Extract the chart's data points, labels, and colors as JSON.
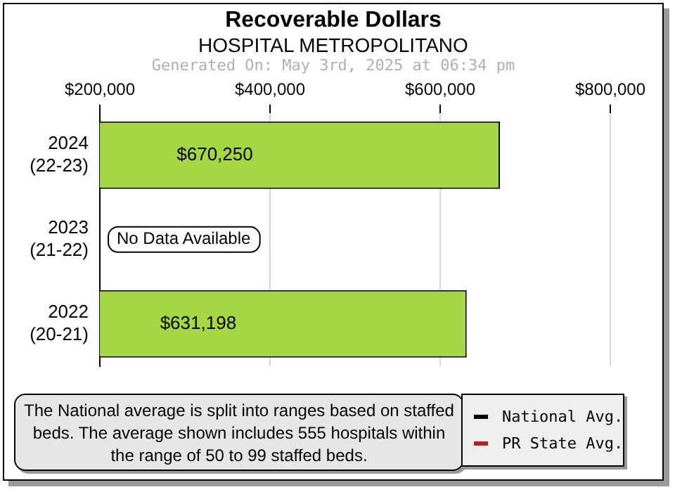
{
  "chart_data": {
    "type": "bar",
    "orientation": "horizontal",
    "title": "Recoverable Dollars",
    "subtitle": "HOSPITAL METROPOLITANO",
    "annotations": [
      "Generated On: May 3rd, 2025 at 06:34 pm",
      "The National average is split into ranges based on staffed beds. The average shown includes 555 hospitals within the range of 50 to 99 staffed beds."
    ],
    "categories": [
      "2024 (22-23)",
      "2023 (21-22)",
      "2022 (20-21)"
    ],
    "series": [
      {
        "color": "#a4d645",
        "values": [
          670250,
          null,
          631198
        ],
        "value_labels": [
          "$670,250",
          "No Data Available",
          "$631,198"
        ]
      },
      {
        "type": "line",
        "name": "National Avg.",
        "color": "#000000",
        "values": [
          null,
          null,
          null
        ]
      },
      {
        "type": "line",
        "name": "PR State Avg.",
        "color": "#b22222",
        "values": [
          null,
          null,
          null
        ]
      }
    ],
    "xlim": [
      200000,
      800000
    ],
    "xticks": [
      {
        "value": 200000,
        "label": "$200,000"
      },
      {
        "value": 400000,
        "label": "$400,000"
      },
      {
        "value": 600000,
        "label": "$600,000"
      },
      {
        "value": 800000,
        "label": "$800,000"
      }
    ],
    "grid": "x",
    "legend": "bottom right"
  }
}
